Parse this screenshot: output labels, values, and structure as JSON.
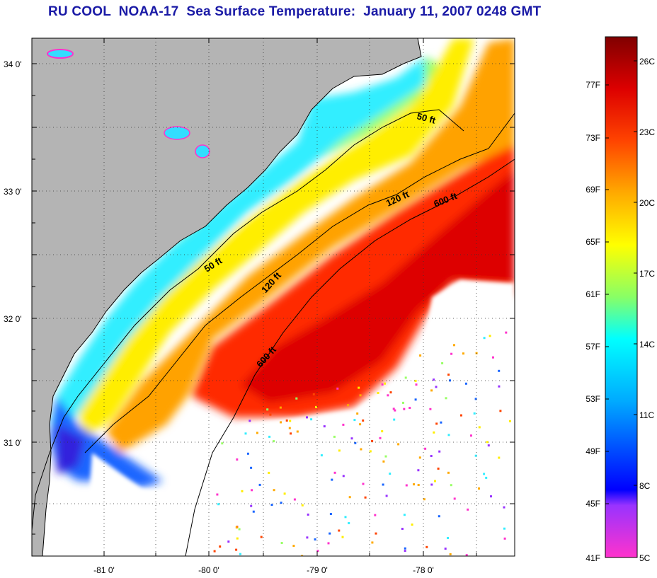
{
  "title": "RU COOL  NOAA-17  Sea Surface Temperature:  January 11, 2007 0248 GMT",
  "map": {
    "latitude_labels": [
      "34 0'",
      "33 0'",
      "32 0'",
      "31 0'"
    ],
    "longitude_labels": [
      "-81 0'",
      "-80 0'",
      "-79 0'",
      "-78 0'"
    ],
    "isobaths": [
      "50 ft",
      "120 ft",
      "600 ft",
      "50 ft",
      "120 ft",
      "600 ft"
    ],
    "colors": {
      "land": "#b4b4b4",
      "cloud": "#ffffff",
      "grid": "#333333"
    }
  },
  "colorbar": {
    "fahrenheit_labels": [
      "77F",
      "73F",
      "69F",
      "65F",
      "61F",
      "57F",
      "53F",
      "49F",
      "45F",
      "41F"
    ],
    "celsius_labels": [
      "26C",
      "23C",
      "20C",
      "17C",
      "14C",
      "11C",
      "8C",
      "5C"
    ],
    "colors": [
      "#ff33cc",
      "#9933ff",
      "#0000ff",
      "#00aaff",
      "#00ffff",
      "#88ff66",
      "#ffff00",
      "#ffaa00",
      "#ff4400",
      "#dd0000",
      "#800000"
    ]
  }
}
